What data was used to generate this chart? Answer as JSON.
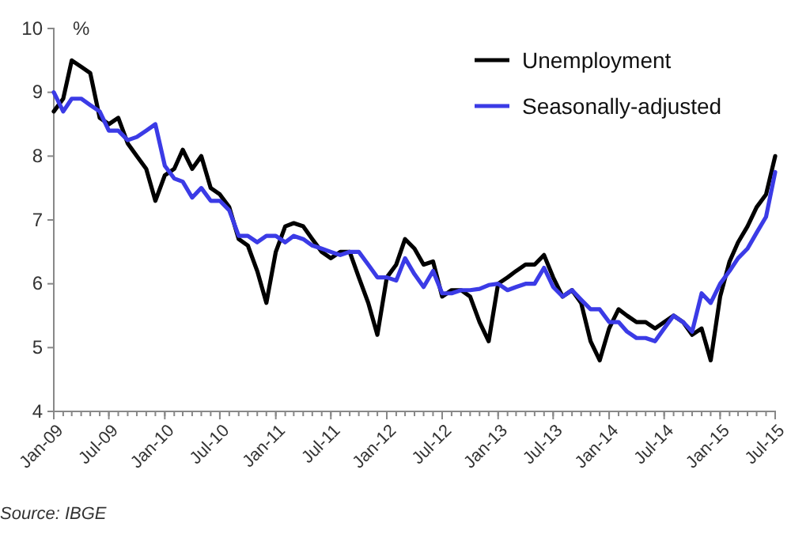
{
  "chart_data": {
    "type": "line",
    "ylabel": "%",
    "annotations": [
      "Source: IBGE"
    ],
    "x": [
      "2009-01",
      "2009-02",
      "2009-03",
      "2009-04",
      "2009-05",
      "2009-06",
      "2009-07",
      "2009-08",
      "2009-09",
      "2009-10",
      "2009-11",
      "2009-12",
      "2010-01",
      "2010-02",
      "2010-03",
      "2010-04",
      "2010-05",
      "2010-06",
      "2010-07",
      "2010-08",
      "2010-09",
      "2010-10",
      "2010-11",
      "2010-12",
      "2011-01",
      "2011-02",
      "2011-03",
      "2011-04",
      "2011-05",
      "2011-06",
      "2011-07",
      "2011-08",
      "2011-09",
      "2011-10",
      "2011-11",
      "2011-12",
      "2012-01",
      "2012-02",
      "2012-03",
      "2012-04",
      "2012-05",
      "2012-06",
      "2012-07",
      "2012-08",
      "2012-09",
      "2012-10",
      "2012-11",
      "2012-12",
      "2013-01",
      "2013-02",
      "2013-03",
      "2013-04",
      "2013-05",
      "2013-06",
      "2013-07",
      "2013-08",
      "2013-09",
      "2013-10",
      "2013-11",
      "2013-12",
      "2014-01",
      "2014-02",
      "2014-03",
      "2014-04",
      "2014-05",
      "2014-06",
      "2014-07",
      "2014-08",
      "2014-09",
      "2014-10",
      "2014-11",
      "2014-12",
      "2015-01",
      "2015-02",
      "2015-03",
      "2015-04",
      "2015-05",
      "2015-06",
      "2015-07"
    ],
    "series": [
      {
        "name": "Unemployment",
        "color": "#000000",
        "values": [
          8.7,
          8.9,
          9.5,
          9.4,
          9.3,
          8.6,
          8.5,
          8.6,
          8.2,
          8.0,
          7.8,
          7.3,
          7.7,
          7.8,
          8.1,
          7.8,
          8.0,
          7.5,
          7.4,
          7.2,
          6.7,
          6.6,
          6.2,
          5.7,
          6.5,
          6.9,
          6.95,
          6.9,
          6.7,
          6.5,
          6.4,
          6.5,
          6.5,
          6.1,
          5.7,
          5.2,
          6.1,
          6.3,
          6.7,
          6.55,
          6.3,
          6.35,
          5.8,
          5.9,
          5.9,
          5.8,
          5.4,
          5.1,
          6.0,
          6.1,
          6.2,
          6.3,
          6.3,
          6.45,
          6.1,
          5.8,
          5.9,
          5.7,
          5.1,
          4.8,
          5.3,
          5.6,
          5.5,
          5.4,
          5.4,
          5.3,
          5.4,
          5.5,
          5.4,
          5.2,
          5.3,
          4.8,
          5.8,
          6.35,
          6.65,
          6.9,
          7.2,
          7.4,
          8.0
        ]
      },
      {
        "name": "Seasonally-adjusted",
        "color": "#3b3be6",
        "values": [
          9.0,
          8.7,
          8.9,
          8.9,
          8.8,
          8.7,
          8.4,
          8.4,
          8.25,
          8.3,
          8.4,
          8.5,
          7.85,
          7.65,
          7.6,
          7.35,
          7.5,
          7.3,
          7.3,
          7.15,
          6.75,
          6.75,
          6.65,
          6.75,
          6.75,
          6.65,
          6.75,
          6.7,
          6.6,
          6.55,
          6.5,
          6.45,
          6.5,
          6.5,
          6.3,
          6.1,
          6.1,
          6.05,
          6.4,
          6.15,
          5.95,
          6.2,
          5.85,
          5.85,
          5.9,
          5.9,
          5.92,
          5.98,
          6.0,
          5.9,
          5.95,
          6.0,
          6.0,
          6.25,
          5.95,
          5.8,
          5.9,
          5.75,
          5.6,
          5.6,
          5.4,
          5.4,
          5.25,
          5.15,
          5.15,
          5.1,
          5.3,
          5.5,
          5.4,
          5.25,
          5.85,
          5.7,
          6.0,
          6.2,
          6.4,
          6.55,
          6.8,
          7.05,
          7.75
        ]
      }
    ],
    "xlim": [
      "2009-01",
      "2015-07"
    ],
    "xticks": [
      {
        "value": "2009-01",
        "label": "Jan-09"
      },
      {
        "value": "2009-07",
        "label": "Jul-09"
      },
      {
        "value": "2010-01",
        "label": "Jan-10"
      },
      {
        "value": "2010-07",
        "label": "Jul-10"
      },
      {
        "value": "2011-01",
        "label": "Jan-11"
      },
      {
        "value": "2011-07",
        "label": "Jul-11"
      },
      {
        "value": "2012-01",
        "label": "Jan-12"
      },
      {
        "value": "2012-07",
        "label": "Jul-12"
      },
      {
        "value": "2013-01",
        "label": "Jan-13"
      },
      {
        "value": "2013-07",
        "label": "Jul-13"
      },
      {
        "value": "2014-01",
        "label": "Jan-14"
      },
      {
        "value": "2014-07",
        "label": "Jul-14"
      },
      {
        "value": "2015-01",
        "label": "Jan-15"
      },
      {
        "value": "2015-07",
        "label": "Jul-15"
      }
    ],
    "ylim": [
      4,
      10
    ],
    "yticks": [
      4,
      5,
      6,
      7,
      8,
      9,
      10
    ],
    "legend": "top right",
    "grid": false,
    "marker": "none",
    "line_style": "solid"
  }
}
